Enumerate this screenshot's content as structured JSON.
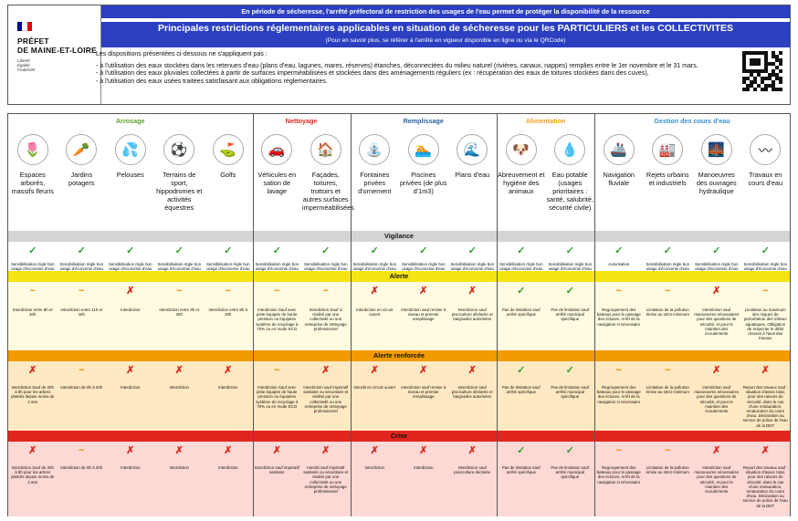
{
  "header": {
    "prefecture": "PRÉFET\nDE MAINE-ET-LOIRE",
    "motto": "Liberté\nÉgalité\nFraternité",
    "banner_top": "En période de sécheresse, l'arrêté préfectoral de restriction des usages de l'eau permet de protéger la disponibilité de la ressource",
    "title": "Principales restrictions réglementaires applicables en situation de sécheresse pour les PARTICULIERS et les COLLECTIVITES",
    "subtitle": "(Pour en savoir plus, se référer à l'arrêté en vigueur disponible en ligne ou via le QRCode)",
    "intro": "Les dispositions présentées ci-dessous ne s'appliquent pas :",
    "bullets": [
      "- à l'utilisation des eaux stockées dans les retenues d'eau (plans d'eau, lagunes, mares, réserves) étanches, déconnectées du milieu naturel (rivières, canaux, nappes) remplies entre le 1er novembre et le 31 mars.",
      "- à l'utilisation des eaux pluviales collectées à partir de surfaces imperméabilisées et stockées dans des aménagements réguliers (ex : récupération des eaux de toitures stockées dans des cuves),",
      "- à l'utilisation des eaux usées traitées satisfaisant aux obligations réglementaires."
    ],
    "colors": {
      "banner": "#2b3fc0",
      "flag_blue": "#000091",
      "flag_red": "#e1000f"
    }
  },
  "categories": [
    {
      "name": "Arrosage",
      "color": "#5aa02c"
    },
    {
      "name": "Nettoyage",
      "color": "#e0261c"
    },
    {
      "name": "Remplissage",
      "color": "#2a5fa8"
    },
    {
      "name": "Alimentation",
      "color": "#f0a020"
    },
    {
      "name": "Gestion des cours d'eau",
      "color": "#3a8fd0"
    }
  ],
  "columns": [
    {
      "label": "Espaces arborés, massifs fleuris",
      "icon": "tulip-icon",
      "glyph": "🌷"
    },
    {
      "label": "Jardins potagers",
      "icon": "carrot-icon",
      "glyph": "🥕"
    },
    {
      "label": "Pelouses",
      "icon": "sprinkler-icon",
      "glyph": "💦"
    },
    {
      "label": "Terrains de sport, hippodromes et activités équestres",
      "icon": "sports-field-icon",
      "glyph": "⚽"
    },
    {
      "label": "Golfs",
      "icon": "golf-flag-icon",
      "glyph": "⛳"
    },
    {
      "label": "Véhicules en sation de lavage",
      "icon": "car-icon",
      "glyph": "🚗"
    },
    {
      "label": "Façades, toitures, trottoirs et autres surfaces imperméabilisées",
      "icon": "house-icon",
      "glyph": "🏠"
    },
    {
      "label": "Fontaines privées d'ornement",
      "icon": "fountain-icon",
      "glyph": "⛲"
    },
    {
      "label": "Piscines privées (de plus d'1m3)",
      "icon": "swimmer-icon",
      "glyph": "🏊"
    },
    {
      "label": "Plans d'eau",
      "icon": "pond-icon",
      "glyph": "🌊"
    },
    {
      "label": "Abreuvement et hygiène des animaux",
      "icon": "dog-icon",
      "glyph": "🐶"
    },
    {
      "label": "Eau potable (usages prioritaires : santé, salubrité, sécurité civile)",
      "icon": "water-drop-icon",
      "glyph": "💧"
    },
    {
      "label": "Navigation fluviale",
      "icon": "ship-icon",
      "glyph": "🚢"
    },
    {
      "label": "Rejets urbains et industriels",
      "icon": "discharge-icon",
      "glyph": "🏭"
    },
    {
      "label": "Manoeuvres des ouvrages hydraulique",
      "icon": "dam-icon",
      "glyph": "🌉"
    },
    {
      "label": "Travaux en cours d'eau",
      "icon": "river-icon",
      "glyph": "〰"
    }
  ],
  "levels": [
    {
      "name": "Vigilance",
      "bar": "#d4d4d4",
      "bg": "#ffffff",
      "cells": [
        {
          "m": "ok",
          "t": "Sensibilisation règle bon usage d'économie d'eau"
        },
        {
          "m": "ok",
          "t": "Sensibilisation règle bon usage d'économie d'eau"
        },
        {
          "m": "ok",
          "t": "Sensibilisation règle bon usage d'économie d'eau"
        },
        {
          "m": "ok",
          "t": "Sensibilisation règle bon usage d'économie d'eau"
        },
        {
          "m": "ok",
          "t": "Sensibilisation règle bon usage d'économie d'eau"
        },
        {
          "m": "ok",
          "t": "Sensibilisation règle bon usage d'économie d'eau"
        },
        {
          "m": "ok",
          "t": "Sensibilisation règle bon usage d'économie d'eau"
        },
        {
          "m": "ok",
          "t": "Sensibilisation règle bon usage d'économie d'eau"
        },
        {
          "m": "ok",
          "t": "Sensibilisation règle bon usage d'économie d'eau"
        },
        {
          "m": "ok",
          "t": "Sensibilisation règle bon usage d'économie d'eau"
        },
        {
          "m": "ok",
          "t": "Sensibilisation règle bon usage d'économie d'eau"
        },
        {
          "m": "ok",
          "t": "Sensibilisation règle bon usage d'économie d'eau"
        },
        {
          "m": "ok",
          "t": "Autorisation"
        },
        {
          "m": "ok",
          "t": "Sensibilisation règle bon usage d'économie d'eau"
        },
        {
          "m": "ok",
          "t": "Sensibilisation règle bon usage d'économie d'eau"
        },
        {
          "m": "ok",
          "t": "Sensibilisation règle bon usage d'économie d'eau"
        }
      ]
    },
    {
      "name": "Alerte",
      "bar": "#f5e414",
      "bg": "#fffbe0",
      "cells": [
        {
          "m": "tilde",
          "t": "Interdiction entre 8h et 20h"
        },
        {
          "m": "tilde",
          "t": "Interdiction entre 11h et 18h"
        },
        {
          "m": "no",
          "t": "Interdiction"
        },
        {
          "m": "tilde",
          "t": "Interdiction entre 8h et 20h"
        },
        {
          "m": "tilde",
          "t": "Interdiction entre 8h à 20h"
        },
        {
          "m": "tilde",
          "t": "Interdiction Sauf avec piste équipée de haute pression ou équipées système de recyclage à 70% ou en mode ECO"
        },
        {
          "m": "tilde",
          "t": "Interdiction Sauf si réalisé par une collectivité ou une entreprise de nettoyage professionnel"
        },
        {
          "m": "no",
          "t": "Interdiction en circuit ouvert"
        },
        {
          "m": "no",
          "t": "Interdiction sauf remise à niveau et premier remplissage"
        },
        {
          "m": "no",
          "t": "Interdiction sauf pisciculture déclarée et baignades autorisées"
        },
        {
          "m": "ok",
          "t": "Pas de limitation sauf arrêté spécifique"
        },
        {
          "m": "ok",
          "t": "Pas de limitation sauf arrêté municipal spécifique"
        },
        {
          "m": "tilde",
          "t": "Regroupement des bateaux pour le passage des écluses. Arrêt de la navigation si nécessaire"
        },
        {
          "m": "tilde",
          "t": "Limitation de la pollution émise au strict minimum"
        },
        {
          "m": "no",
          "t": "Interdiction sauf manoeuvres nécessaires pour des questions de sécurité, et pour le maintien des écoulements"
        },
        {
          "m": "tilde",
          "t": "Limitation au maximum des risques de perturbation des milieux aquatiques. Obligation de respecter le débit réservé à l'aval des travaux"
        }
      ]
    },
    {
      "name": "Alerte renforcée",
      "bar": "#f39a00",
      "bg": "#ffe9c2",
      "cells": [
        {
          "m": "no",
          "t": "Interdiction Sauf de 20h à 8h pour les arbres plantés depuis moins de 2 ans"
        },
        {
          "m": "tilde",
          "t": "Interdiction de 8h à 20h"
        },
        {
          "m": "no",
          "t": "Interdiction"
        },
        {
          "m": "no",
          "t": "Interdiction"
        },
        {
          "m": "no",
          "t": "Interdiction"
        },
        {
          "m": "tilde",
          "t": "Interdiction Sauf avec piste équipée de haute pression ou équipées système de recyclage à 70% ou en mode ECO"
        },
        {
          "m": "no",
          "t": "Interdiction sauf impératif sanitaire ou sécuritaire et réalisé par une collectivité ou une entreprise de nettoyage professionnel"
        },
        {
          "m": "no",
          "t": "Interdit en circuit ouvert"
        },
        {
          "m": "no",
          "t": "Interdiction sauf remise à niveau et premier remplissage"
        },
        {
          "m": "no",
          "t": "Interdiction sauf pisciculture déclarée et baignades autorisées"
        },
        {
          "m": "ok",
          "t": "Pas de limitation sauf arrêté spécifique"
        },
        {
          "m": "ok",
          "t": "Pas de limitation sauf arrêté municipal spécifique"
        },
        {
          "m": "tilde",
          "t": "Regroupement des bateaux pour le passage des écluses. Arrêt de la navigation si nécessaire"
        },
        {
          "m": "tilde",
          "t": "Limitation de la pollution émise au strict minimum"
        },
        {
          "m": "no",
          "t": "Interdiction sauf manoeuvres nécessaires pour des questions de sécurité, et pour le maintien des écoulements"
        },
        {
          "m": "no",
          "t": "Report des travaux sauf : situation d'assec total, pour des raisons de sécurité, dans le cas d'une restauration, renaturation du cours d'eau. Déclaration au service de police de l'eau de la DDT"
        }
      ]
    },
    {
      "name": "Crise",
      "bar": "#e0261c",
      "bg": "#fdd9d6",
      "cells": [
        {
          "m": "no",
          "t": "Interdiction Sauf de 20h à 8h pour les arbres plantés depuis moins de 2 ans"
        },
        {
          "m": "tilde",
          "t": "Interdiction de 8h à 20h"
        },
        {
          "m": "no",
          "t": "Interdiction"
        },
        {
          "m": "no",
          "t": "Interdiction"
        },
        {
          "m": "no",
          "t": "Interdiction"
        },
        {
          "m": "no",
          "t": "Interdiction sauf impératif sanitaire"
        },
        {
          "m": "no",
          "t": "Interdit sauf impératif sanitaire ou sécuritaire et réalisé par une collectivité ou une entreprise de nettoyage professionnel"
        },
        {
          "m": "no",
          "t": "Interdiction"
        },
        {
          "m": "no",
          "t": "Interdiction"
        },
        {
          "m": "no",
          "t": "Interdiction sauf pisciculture déclarée"
        },
        {
          "m": "ok",
          "t": "Pas de limitation sauf arrêté spécifique"
        },
        {
          "m": "ok",
          "t": "Pas de limitation sauf arrêté municipal spécifique"
        },
        {
          "m": "tilde",
          "t": "Regroupement des bateaux pour le passage des écluses. Arrêt de la navigation si nécessaire"
        },
        {
          "m": "tilde",
          "t": "Limitation de la pollution émise au strict minimum"
        },
        {
          "m": "no",
          "t": "Interdiction sauf manoeuvres nécessaires pour des questions de sécurité, et pour le maintien des écoulements"
        },
        {
          "m": "no",
          "t": "Report des travaux sauf : situation d'assec total, pour des raisons de sécurité, dans le cas d'une restauration, renaturation du cours d'eau. Déclaration au service de police de l'eau de la DDT"
        }
      ]
    }
  ],
  "symbols": {
    "ok": "✓",
    "tilde": "~",
    "no": "✗"
  }
}
